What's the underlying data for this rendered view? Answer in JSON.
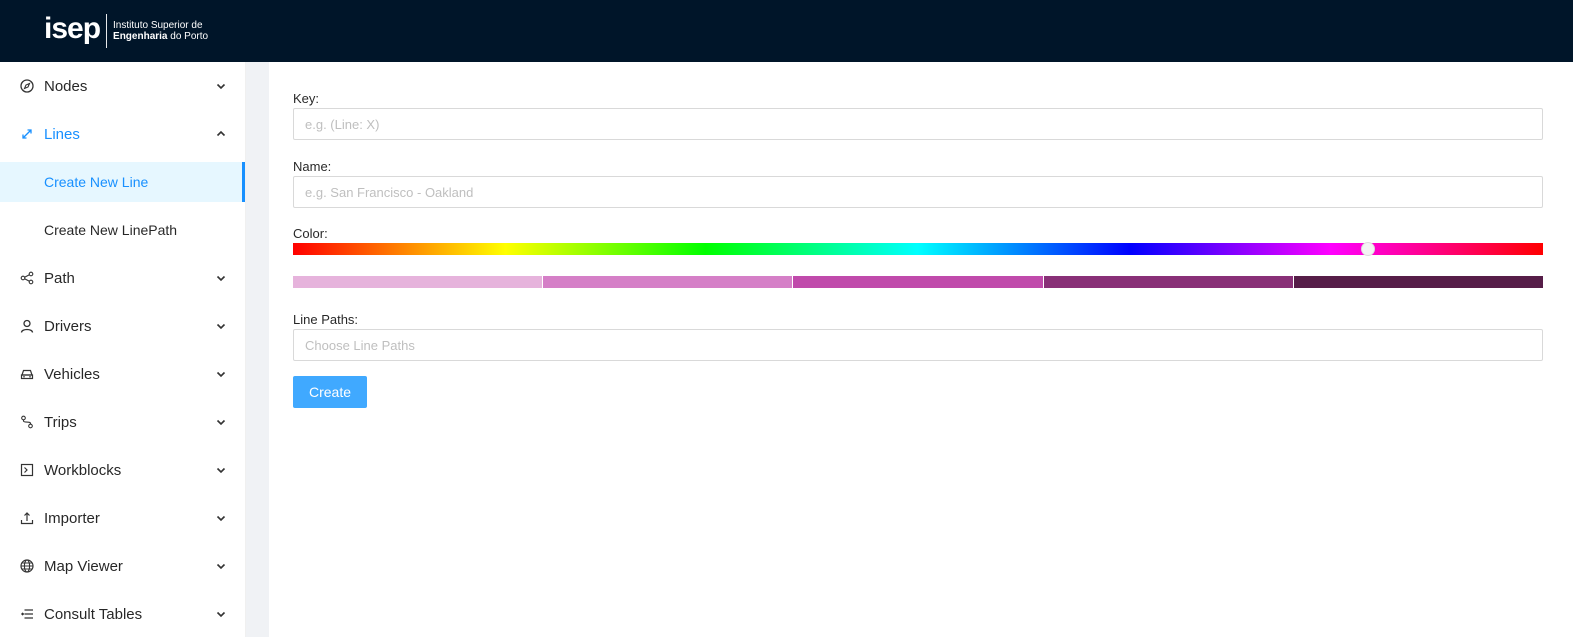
{
  "header": {
    "logo_mark": "isep",
    "logo_line1": "Instituto Superior de",
    "logo_line2_bold": "Engenharia",
    "logo_line2_rest": " do Porto"
  },
  "sidebar": {
    "items": [
      {
        "label": "Nodes",
        "icon": "compass-icon",
        "expanded": false
      },
      {
        "label": "Lines",
        "icon": "arrows-diagonal-icon",
        "expanded": true,
        "children": [
          {
            "label": "Create New Line",
            "selected": true
          },
          {
            "label": "Create New LinePath",
            "selected": false
          }
        ]
      },
      {
        "label": "Path",
        "icon": "share-icon",
        "expanded": false
      },
      {
        "label": "Drivers",
        "icon": "user-icon",
        "expanded": false
      },
      {
        "label": "Vehicles",
        "icon": "car-icon",
        "expanded": false
      },
      {
        "label": "Trips",
        "icon": "route-icon",
        "expanded": false
      },
      {
        "label": "Workblocks",
        "icon": "code-icon",
        "expanded": false
      },
      {
        "label": "Importer",
        "icon": "upload-icon",
        "expanded": false
      },
      {
        "label": "Map Viewer",
        "icon": "globe-icon",
        "expanded": false
      },
      {
        "label": "Consult Tables",
        "icon": "list-icon",
        "expanded": false
      }
    ]
  },
  "form": {
    "key_label": "Key:",
    "key_placeholder": "e.g. (Line: X)",
    "name_label": "Name:",
    "name_placeholder": "e.g. San Francisco - Oakland",
    "color_label": "Color:",
    "hue_value": 0.86,
    "swatches": [
      "#e6b3dc",
      "#d57fc7",
      "#c04aab",
      "#893077",
      "#561d48"
    ],
    "line_paths_label": "Line Paths:",
    "line_paths_placeholder": "Choose Line Paths",
    "create_label": "Create"
  },
  "colors": {
    "header_bg": "#001529",
    "accent": "#1890ff",
    "button_bg": "#40a9ff",
    "selected_bg": "#e6f7ff"
  }
}
